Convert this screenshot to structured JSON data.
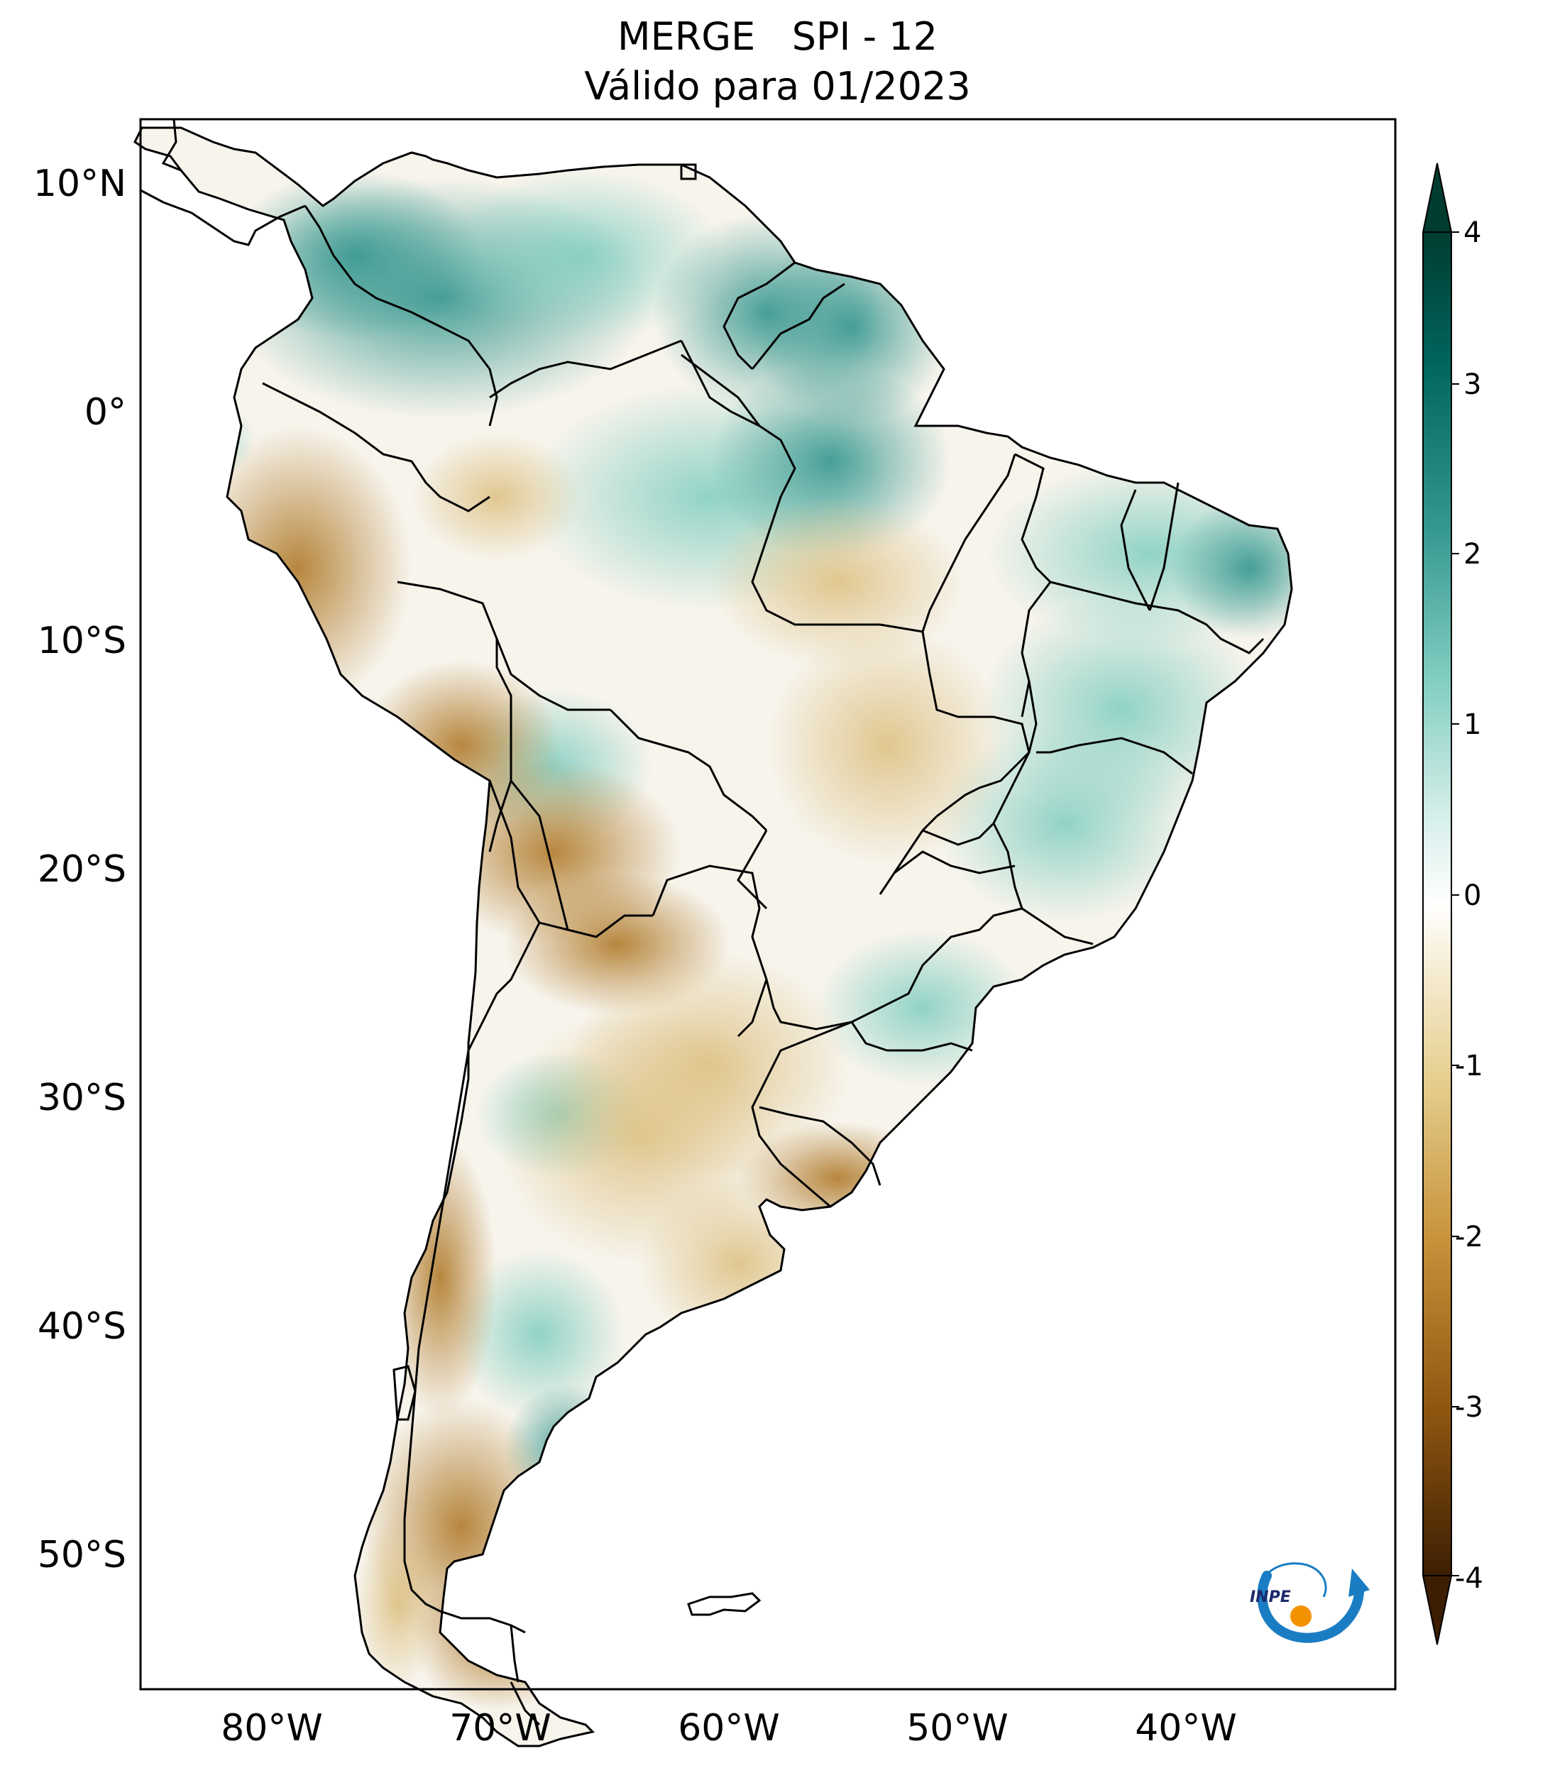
{
  "title": {
    "line1": "MERGE   SPI - 12",
    "line2": "Válido para 01/2023"
  },
  "map": {
    "lat_labels": [
      "10°N",
      "0°",
      "10°S",
      "20°S",
      "30°S",
      "40°S",
      "50°S"
    ],
    "lon_labels": [
      "80°W",
      "70°W",
      "60°W",
      "50°W",
      "40°W"
    ],
    "extent": {
      "lon_min": -86,
      "lon_max": -31,
      "lat_min": -56,
      "lat_max": 13
    }
  },
  "colorbar": {
    "ticks": [
      "4",
      "3",
      "2",
      "1",
      "0",
      "-1",
      "-2",
      "-3",
      "-4"
    ],
    "min": -4,
    "max": 4,
    "colors": [
      "#3d1e03",
      "#8c5510",
      "#c7923a",
      "#e6cf8f",
      "#f5ecd2",
      "#ffffff",
      "#d2ede8",
      "#7fcdc0",
      "#35978f",
      "#01665e",
      "#003c30"
    ]
  },
  "logo": {
    "text": "INPE"
  }
}
